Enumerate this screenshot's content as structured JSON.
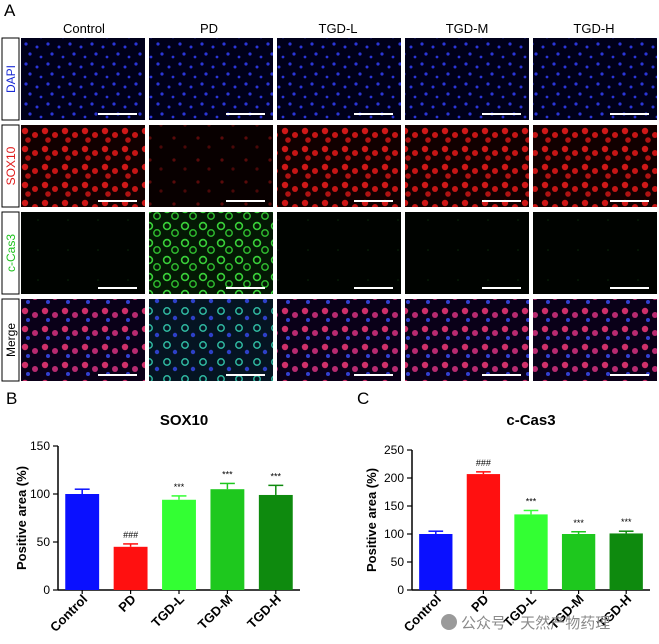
{
  "panel_labels": [
    "A",
    "B",
    "C"
  ],
  "micrograph_grid": {
    "columns": [
      "Control",
      "PD",
      "TGD-L",
      "TGD-M",
      "TGD-H"
    ],
    "rows": [
      {
        "label": "DAPI",
        "color": "#1a2bd6"
      },
      {
        "label": "SOX10",
        "color": "#e01b1b"
      },
      {
        "label": "c-Cas3",
        "color": "#1fc21f"
      },
      {
        "label": "Merge",
        "color": "#000000"
      }
    ]
  },
  "colors": {
    "Control": "#0a10ff",
    "PD": "#ff1010",
    "TGD-L": "#33ff33",
    "TGD-M": "#1ec81e",
    "TGD-H": "#0e8a0e"
  },
  "chart_data": [
    {
      "type": "bar",
      "title": "SOX10",
      "ylabel": "Positive area (%)",
      "categories": [
        "Control",
        "PD",
        "TGD-L",
        "TGD-M",
        "TGD-H"
      ],
      "values": [
        100,
        45,
        94,
        105,
        99
      ],
      "errors": [
        5,
        3,
        4,
        6,
        10
      ],
      "annotations": [
        "",
        "###",
        "***",
        "***",
        "***"
      ],
      "ylim": [
        0,
        150
      ],
      "yticks": [
        0,
        50,
        100,
        150
      ]
    },
    {
      "type": "bar",
      "title": "c-Cas3",
      "ylabel": "Positive area (%)",
      "categories": [
        "Control",
        "PD",
        "TGD-L",
        "TGD-M",
        "TGD-H"
      ],
      "values": [
        100,
        207,
        135,
        100,
        101
      ],
      "errors": [
        5,
        4,
        7,
        4,
        4
      ],
      "annotations": [
        "",
        "###",
        "***",
        "***",
        "***"
      ],
      "ylim": [
        0,
        250
      ],
      "yticks": [
        0,
        50,
        100,
        150,
        200,
        250
      ]
    }
  ],
  "watermark": "公众号 · 天然产物药理"
}
